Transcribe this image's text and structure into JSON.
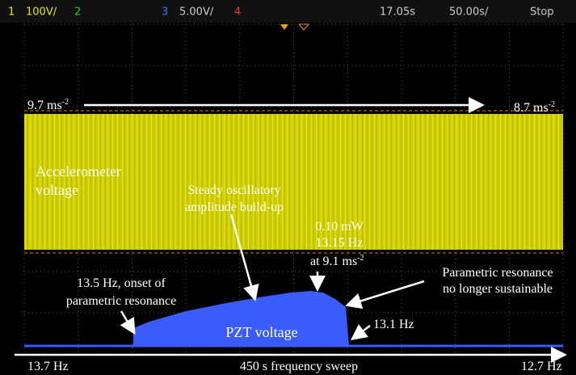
{
  "toolbar": {
    "ch1": "1",
    "ch1_scale": "100V/",
    "ch2": "2",
    "ch3": "3",
    "ch3_scale": "5.00V/",
    "ch4": "4",
    "time_pos": "17.05s",
    "time_scale": "50.00s/",
    "status": "Stop"
  },
  "annotations": {
    "start_accel": {
      "text": "9.7 ms",
      "sup": "-2"
    },
    "end_accel": {
      "text": "8.7 ms",
      "sup": "-2"
    },
    "accel_label": [
      "Accelerometer",
      "voltage"
    ],
    "buildup": [
      "Steady oscillatory",
      "amplitude build-up"
    ],
    "peak": [
      "0.10 mW",
      "13.15 Hz"
    ],
    "peak_accel": {
      "text": "at 9.1 ms",
      "sup": "-2"
    },
    "unsustain": [
      "Parametric resonance",
      "no longer sustainable"
    ],
    "onset": [
      "13.5 Hz, onset of",
      "parametric resonance"
    ],
    "pzt_label": "PZT voltage",
    "end_freq": "13.1 Hz",
    "sweep_start": "13.7 Hz",
    "sweep_label": "450 s frequency sweep",
    "sweep_end": "12.7 Hz"
  }
}
